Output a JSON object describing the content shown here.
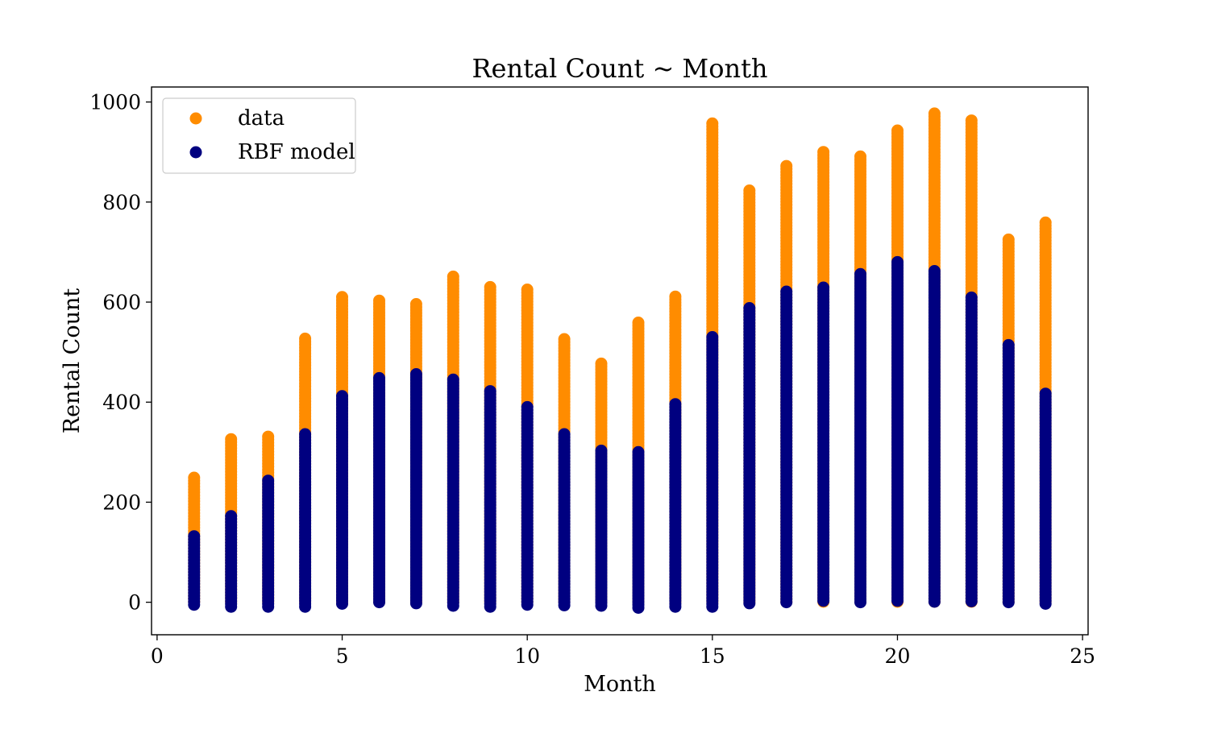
{
  "chart_data": {
    "type": "scatter",
    "title": "Rental Count ~ Month",
    "xlabel": "Month",
    "ylabel": "Rental Count",
    "xlim": [
      -0.15,
      25.15
    ],
    "ylim": [
      -65,
      1030
    ],
    "xticks": [
      0,
      5,
      10,
      15,
      20,
      25
    ],
    "yticks": [
      0,
      200,
      400,
      600,
      800,
      1000
    ],
    "grid": false,
    "legend_position": "top-left",
    "series": [
      {
        "name": "data",
        "color": "#ff8c00",
        "columns": [
          {
            "x": 1,
            "min": 1,
            "max": 249
          },
          {
            "x": 2,
            "min": 1,
            "max": 326
          },
          {
            "x": 3,
            "min": 1,
            "max": 331
          },
          {
            "x": 4,
            "min": 1,
            "max": 527
          },
          {
            "x": 5,
            "min": 1,
            "max": 610
          },
          {
            "x": 6,
            "min": 1,
            "max": 603
          },
          {
            "x": 7,
            "min": 1,
            "max": 596
          },
          {
            "x": 8,
            "min": 1,
            "max": 651
          },
          {
            "x": 9,
            "min": 1,
            "max": 630
          },
          {
            "x": 10,
            "min": 1,
            "max": 625
          },
          {
            "x": 11,
            "min": 1,
            "max": 526
          },
          {
            "x": 12,
            "min": 1,
            "max": 477
          },
          {
            "x": 13,
            "min": 1,
            "max": 559
          },
          {
            "x": 14,
            "min": 1,
            "max": 611
          },
          {
            "x": 15,
            "min": 1,
            "max": 957
          },
          {
            "x": 16,
            "min": 1,
            "max": 823
          },
          {
            "x": 17,
            "min": 1,
            "max": 872
          },
          {
            "x": 18,
            "min": 1,
            "max": 900
          },
          {
            "x": 19,
            "min": 1,
            "max": 891
          },
          {
            "x": 20,
            "min": 1,
            "max": 943
          },
          {
            "x": 21,
            "min": 1,
            "max": 977
          },
          {
            "x": 22,
            "min": 1,
            "max": 963
          },
          {
            "x": 23,
            "min": 1,
            "max": 725
          },
          {
            "x": 24,
            "min": 1,
            "max": 759
          }
        ]
      },
      {
        "name": "RBF model",
        "color": "#000080",
        "columns": [
          {
            "x": 1,
            "min": -5,
            "max": 132
          },
          {
            "x": 2,
            "min": -9,
            "max": 172
          },
          {
            "x": 3,
            "min": -9,
            "max": 243
          },
          {
            "x": 4,
            "min": -9,
            "max": 336
          },
          {
            "x": 5,
            "min": -3,
            "max": 412
          },
          {
            "x": 6,
            "min": 0,
            "max": 448
          },
          {
            "x": 7,
            "min": -2,
            "max": 456
          },
          {
            "x": 8,
            "min": -7,
            "max": 445
          },
          {
            "x": 9,
            "min": -9,
            "max": 422
          },
          {
            "x": 10,
            "min": -5,
            "max": 390
          },
          {
            "x": 11,
            "min": -6,
            "max": 336
          },
          {
            "x": 12,
            "min": -7,
            "max": 303
          },
          {
            "x": 13,
            "min": -11,
            "max": 300
          },
          {
            "x": 14,
            "min": -9,
            "max": 396
          },
          {
            "x": 15,
            "min": -9,
            "max": 530
          },
          {
            "x": 16,
            "min": -2,
            "max": 588
          },
          {
            "x": 17,
            "min": 0,
            "max": 621
          },
          {
            "x": 18,
            "min": 3,
            "max": 629
          },
          {
            "x": 19,
            "min": 0,
            "max": 656
          },
          {
            "x": 20,
            "min": 3,
            "max": 680
          },
          {
            "x": 21,
            "min": 1,
            "max": 662
          },
          {
            "x": 22,
            "min": 2,
            "max": 609
          },
          {
            "x": 23,
            "min": 0,
            "max": 514
          },
          {
            "x": 24,
            "min": -3,
            "max": 417
          }
        ]
      }
    ]
  }
}
